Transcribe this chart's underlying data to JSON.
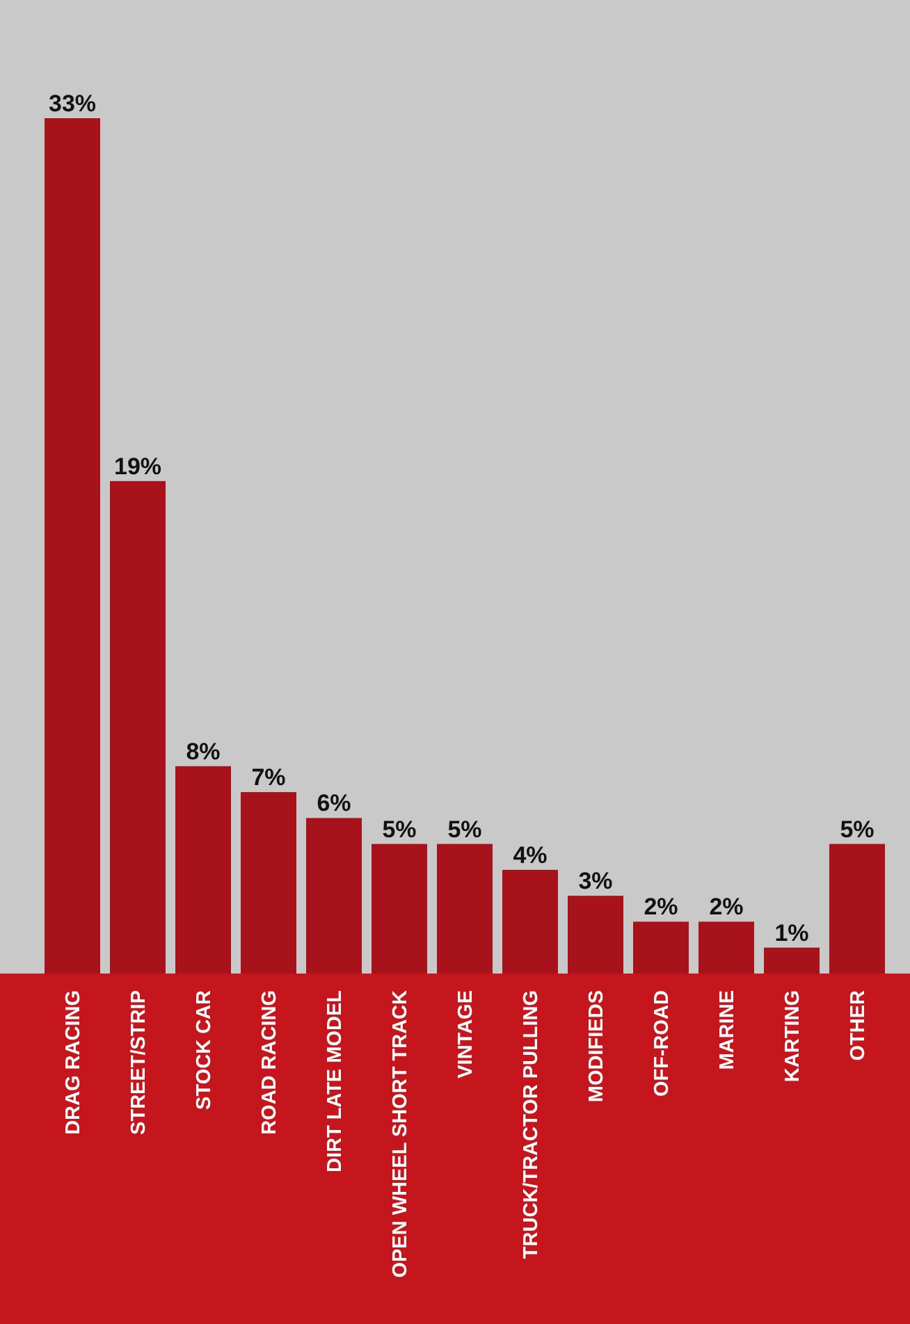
{
  "chart_data": {
    "type": "bar",
    "categories": [
      "DRAG RACING",
      "STREET/STRIP",
      "STOCK CAR",
      "ROAD RACING",
      "DIRT LATE MODEL",
      "OPEN WHEEL SHORT TRACK",
      "VINTAGE",
      "TRUCK/TRACTOR PULLING",
      "MODIFIEDS",
      "OFF-ROAD",
      "MARINE",
      "KARTING",
      "OTHER"
    ],
    "values": [
      33,
      19,
      8,
      7,
      6,
      5,
      5,
      4,
      3,
      2,
      2,
      1,
      5
    ],
    "value_labels": [
      "33%",
      "19%",
      "8%",
      "7%",
      "6%",
      "5%",
      "5%",
      "4%",
      "3%",
      "2%",
      "2%",
      "1%",
      "5%"
    ],
    "color": "#a8121b"
  }
}
